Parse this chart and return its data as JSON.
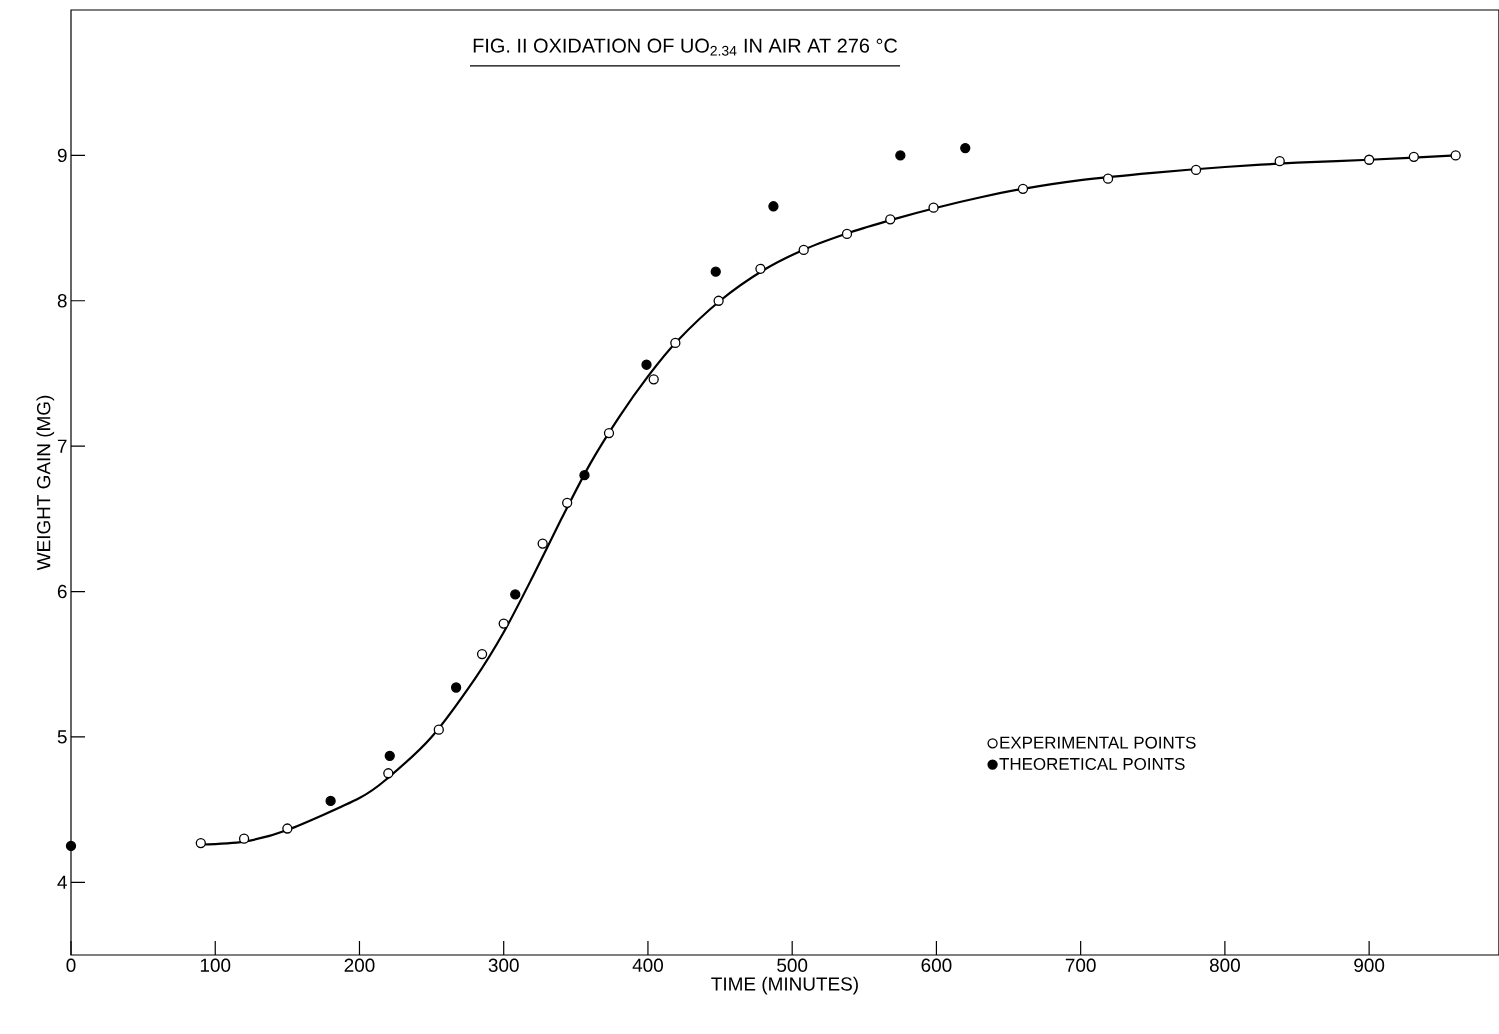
{
  "chart_data": {
    "type": "scatter",
    "title": "FIG. II  OXIDATION  OF  UO$_{2.34}$ IN  AIR  AT  276 °C",
    "xlabel": "TIME  (MINUTES)",
    "ylabel": "WEIGHT  GAIN  (MG)",
    "xlim": [
      0,
      990
    ],
    "ylim": [
      3.5,
      10
    ],
    "xticks": [
      0,
      100,
      200,
      300,
      400,
      500,
      600,
      700,
      800,
      900
    ],
    "yticks": [
      4,
      5,
      6,
      7,
      8,
      9
    ],
    "legend": "bottom right",
    "grid": false,
    "series": [
      {
        "name": "EXPERIMENTAL  POINTS",
        "color": "#ffffff",
        "marker": "circle",
        "x": [
          90,
          120,
          150,
          220,
          255,
          285,
          300,
          327,
          344,
          373,
          404,
          419,
          449,
          478,
          508,
          538,
          568,
          598,
          660,
          719,
          780,
          838,
          900,
          931,
          960
        ],
        "values": [
          4.27,
          4.3,
          4.37,
          4.75,
          5.05,
          5.57,
          5.78,
          6.33,
          6.61,
          7.09,
          7.46,
          7.71,
          8.0,
          8.22,
          8.35,
          8.46,
          8.56,
          8.64,
          8.77,
          8.84,
          8.9,
          8.96,
          8.97,
          8.99,
          9.0
        ]
      },
      {
        "name": "THEORETICAL  POINTS",
        "color": "#000000",
        "marker": "circle",
        "x": [
          0,
          180,
          221,
          267,
          308,
          356,
          399,
          447,
          487,
          575,
          620
        ],
        "values": [
          4.25,
          4.56,
          4.87,
          5.34,
          5.98,
          6.8,
          7.56,
          8.2,
          8.65,
          9.0,
          9.05
        ]
      },
      {
        "type": "line",
        "color": "#000000",
        "marker": "none",
        "x": [
          90,
          120,
          150,
          200,
          220,
          250,
          280,
          300,
          320,
          340,
          360,
          380,
          400,
          420,
          450,
          480,
          510,
          540,
          570,
          600,
          630,
          660,
          700,
          750,
          800,
          850,
          900,
          960
        ],
        "values": [
          4.26,
          4.28,
          4.36,
          4.58,
          4.72,
          5.0,
          5.4,
          5.72,
          6.1,
          6.5,
          6.88,
          7.2,
          7.48,
          7.72,
          8.0,
          8.21,
          8.36,
          8.47,
          8.56,
          8.64,
          8.71,
          8.77,
          8.83,
          8.88,
          8.92,
          8.95,
          8.97,
          9.0
        ]
      }
    ]
  }
}
